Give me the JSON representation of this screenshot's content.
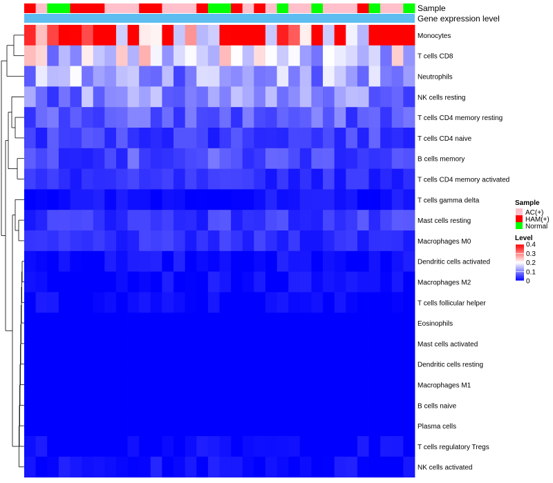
{
  "chart_data": {
    "type": "heatmap",
    "title": "",
    "annotation_tracks": [
      "Sample",
      "Gene expression level"
    ],
    "row_labels": [
      "Monocytes",
      "T cells CD8",
      "Neutrophils",
      "NK cells resting",
      "T cells CD4 memory resting",
      "T cells CD4 naive",
      "B cells memory",
      "T cells CD4 memory activated",
      "T cells gamma delta",
      "Mast cells resting",
      "Macrophages M0",
      "Dendritic cells activated",
      "Macrophages M2",
      "T cells follicular helper",
      "Eosinophils",
      "Mast cells activated",
      "Dendritic cells resting",
      "Macrophages M1",
      "B cells naive",
      "Plasma cells",
      "T cells regulatory  Tregs",
      "NK cells activated"
    ],
    "n_columns": 34,
    "sample_groups": [
      "HAM(+)",
      "AC(+)",
      "Normal",
      "Normal",
      "HAM(+)",
      "HAM(+)",
      "HAM(+)",
      "AC(+)",
      "AC(+)",
      "AC(+)",
      "HAM(+)",
      "HAM(+)",
      "AC(+)",
      "AC(+)",
      "AC(+)",
      "HAM(+)",
      "Normal",
      "Normal",
      "HAM(+)",
      "AC(+)",
      "HAM(+)",
      "AC(+)",
      "Normal",
      "AC(+)",
      "AC(+)",
      "Normal",
      "AC(+)",
      "AC(+)",
      "AC(+)",
      "HAM(+)",
      "Normal",
      "AC(+)",
      "AC(+)",
      "Normal"
    ],
    "approx_row_mean_level": [
      0.33,
      0.18,
      0.13,
      0.1,
      0.07,
      0.05,
      0.06,
      0.035,
      0.01,
      0.045,
      0.035,
      0.01,
      0.008,
      0.003,
      0.0,
      0.0,
      0.0,
      0.0,
      0.0,
      0.0,
      0.004,
      0.01
    ],
    "legend": {
      "sample": {
        "title": "Sample",
        "entries": [
          {
            "label": "AC(+)",
            "color": "#ffc0cb"
          },
          {
            "label": "HAM(+)",
            "color": "#ff0000"
          },
          {
            "label": "Normal",
            "color": "#00ff00"
          }
        ]
      },
      "level": {
        "title": "Level",
        "range": [
          0,
          0.4
        ],
        "ticks": [
          0.4,
          0.3,
          0.2,
          0.1,
          0
        ],
        "tick_labels": [
          "0.4",
          "0.3",
          "0.2",
          "0.1",
          "0"
        ],
        "colors": {
          "low": "#0000ff",
          "mid": "#ffffff",
          "high": "#ff0000"
        }
      }
    },
    "gene_expression_bar_color": "#5ebdf0"
  }
}
